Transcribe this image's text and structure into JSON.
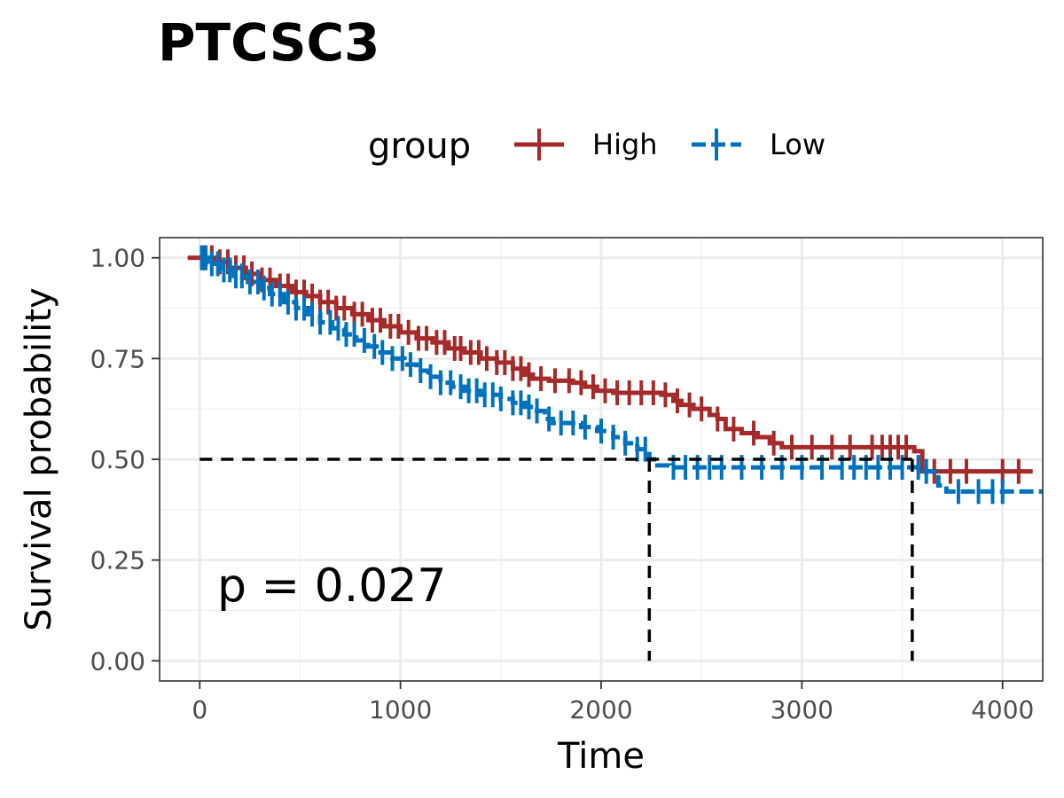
{
  "chart_data": {
    "type": "line",
    "subtype": "kaplan-meier",
    "title": "PTCSC3",
    "xlabel": "Time",
    "ylabel": "Survival probability",
    "xlim": [
      -200,
      4200
    ],
    "ylim": [
      -0.05,
      1.05
    ],
    "x_ticks": [
      0,
      1000,
      2000,
      3000,
      4000
    ],
    "x_tick_labels": [
      "0",
      "1000",
      "2000",
      "3000",
      "4000"
    ],
    "y_ticks": [
      0,
      0.25,
      0.5,
      0.75,
      1
    ],
    "y_tick_labels": [
      "0.00",
      "0.25",
      "0.50",
      "0.75",
      "1.00"
    ],
    "grid": true,
    "legend": {
      "title": "group",
      "position": "top"
    },
    "annotation": "p = 0.027",
    "median_line": {
      "y": 0.5,
      "x_start": 0,
      "medians": [
        2240,
        3550
      ]
    },
    "series": [
      {
        "name": "High",
        "color": "#A52A2A",
        "points": [
          [
            -60,
            1.0
          ],
          [
            40,
            1.0
          ],
          [
            80,
            0.99
          ],
          [
            150,
            0.975
          ],
          [
            230,
            0.96
          ],
          [
            300,
            0.945
          ],
          [
            380,
            0.93
          ],
          [
            460,
            0.915
          ],
          [
            530,
            0.905
          ],
          [
            600,
            0.89
          ],
          [
            680,
            0.875
          ],
          [
            760,
            0.86
          ],
          [
            840,
            0.845
          ],
          [
            920,
            0.83
          ],
          [
            1000,
            0.815
          ],
          [
            1080,
            0.8
          ],
          [
            1160,
            0.79
          ],
          [
            1240,
            0.775
          ],
          [
            1320,
            0.765
          ],
          [
            1400,
            0.75
          ],
          [
            1480,
            0.74
          ],
          [
            1560,
            0.725
          ],
          [
            1620,
            0.71
          ],
          [
            1660,
            0.7
          ],
          [
            1740,
            0.695
          ],
          [
            1860,
            0.69
          ],
          [
            1920,
            0.68
          ],
          [
            1980,
            0.67
          ],
          [
            2060,
            0.665
          ],
          [
            2300,
            0.66
          ],
          [
            2360,
            0.645
          ],
          [
            2400,
            0.635
          ],
          [
            2460,
            0.625
          ],
          [
            2540,
            0.61
          ],
          [
            2580,
            0.6
          ],
          [
            2620,
            0.575
          ],
          [
            2700,
            0.565
          ],
          [
            2780,
            0.555
          ],
          [
            2840,
            0.54
          ],
          [
            2900,
            0.53
          ],
          [
            3520,
            0.53
          ],
          [
            3560,
            0.52
          ],
          [
            3600,
            0.47
          ],
          [
            4150,
            0.47
          ]
        ],
        "censor_x": [
          20,
          60,
          100,
          140,
          180,
          220,
          260,
          310,
          350,
          400,
          440,
          480,
          520,
          560,
          600,
          640,
          680,
          720,
          770,
          810,
          860,
          900,
          950,
          990,
          1040,
          1090,
          1130,
          1180,
          1220,
          1270,
          1300,
          1350,
          1390,
          1430,
          1480,
          1520,
          1560,
          1600,
          1640,
          1700,
          1770,
          1840,
          1900,
          1960,
          2020,
          2080,
          2140,
          2200,
          2260,
          2320,
          2380,
          2440,
          2500,
          2580,
          2660,
          2760,
          2860,
          2950,
          3050,
          3150,
          3240,
          3350,
          3400,
          3440,
          3480,
          3520,
          3660,
          3740,
          3820,
          4000,
          4080
        ]
      },
      {
        "name": "Low",
        "color": "#0072BD",
        "points": [
          [
            0,
            1.0
          ],
          [
            40,
            0.985
          ],
          [
            100,
            0.97
          ],
          [
            170,
            0.955
          ],
          [
            240,
            0.94
          ],
          [
            300,
            0.925
          ],
          [
            350,
            0.91
          ],
          [
            420,
            0.89
          ],
          [
            480,
            0.875
          ],
          [
            540,
            0.86
          ],
          [
            600,
            0.84
          ],
          [
            660,
            0.825
          ],
          [
            720,
            0.81
          ],
          [
            780,
            0.795
          ],
          [
            840,
            0.78
          ],
          [
            900,
            0.765
          ],
          [
            960,
            0.75
          ],
          [
            1020,
            0.735
          ],
          [
            1080,
            0.72
          ],
          [
            1140,
            0.705
          ],
          [
            1200,
            0.69
          ],
          [
            1260,
            0.68
          ],
          [
            1320,
            0.67
          ],
          [
            1400,
            0.66
          ],
          [
            1500,
            0.65
          ],
          [
            1560,
            0.64
          ],
          [
            1620,
            0.63
          ],
          [
            1680,
            0.62
          ],
          [
            1720,
            0.6
          ],
          [
            1760,
            0.59
          ],
          [
            1900,
            0.58
          ],
          [
            1980,
            0.57
          ],
          [
            2060,
            0.555
          ],
          [
            2120,
            0.54
          ],
          [
            2180,
            0.525
          ],
          [
            2240,
            0.5
          ],
          [
            2280,
            0.485
          ],
          [
            2340,
            0.48
          ],
          [
            3560,
            0.48
          ],
          [
            3600,
            0.47
          ],
          [
            3680,
            0.435
          ],
          [
            3720,
            0.42
          ],
          [
            4200,
            0.42
          ]
        ],
        "censor_x": [
          10,
          30,
          60,
          90,
          120,
          150,
          180,
          210,
          250,
          290,
          320,
          360,
          400,
          440,
          480,
          520,
          560,
          600,
          650,
          690,
          730,
          770,
          820,
          870,
          910,
          960,
          1010,
          1050,
          1100,
          1150,
          1200,
          1250,
          1300,
          1340,
          1380,
          1420,
          1460,
          1500,
          1560,
          1600,
          1640,
          1680,
          1740,
          1800,
          1860,
          1920,
          2000,
          2060,
          2120,
          2180,
          2220,
          2360,
          2420,
          2480,
          2540,
          2600,
          2700,
          2800,
          2900,
          3000,
          3100,
          3200,
          3260,
          3320,
          3380,
          3440,
          3500,
          3580,
          3620,
          3780,
          3880,
          3950,
          4000
        ]
      }
    ]
  }
}
